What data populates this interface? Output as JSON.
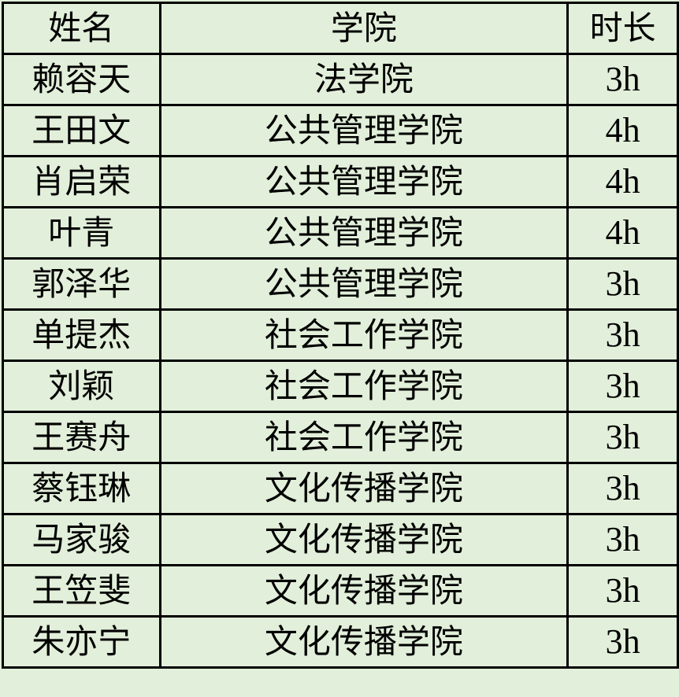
{
  "headers": [
    "姓名",
    "学院",
    "时长"
  ],
  "rows": [
    [
      "赖容天",
      "法学院",
      "3h"
    ],
    [
      "王田文",
      "公共管理学院",
      "4h"
    ],
    [
      "肖启荣",
      "公共管理学院",
      "4h"
    ],
    [
      "叶青",
      "公共管理学院",
      "4h"
    ],
    [
      "郭泽华",
      "公共管理学院",
      "3h"
    ],
    [
      "单提杰",
      "社会工作学院",
      "3h"
    ],
    [
      "刘颖",
      "社会工作学院",
      "3h"
    ],
    [
      "王赛舟",
      "社会工作学院",
      "3h"
    ],
    [
      "蔡钰琳",
      "文化传播学院",
      "3h"
    ],
    [
      "马家骏",
      "文化传播学院",
      "3h"
    ],
    [
      "王笠斐",
      "文化传播学院",
      "3h"
    ],
    [
      "朱亦宁",
      "文化传播学院",
      "3h"
    ]
  ],
  "colors": {
    "background": "#e2efda",
    "border": "#000000"
  }
}
